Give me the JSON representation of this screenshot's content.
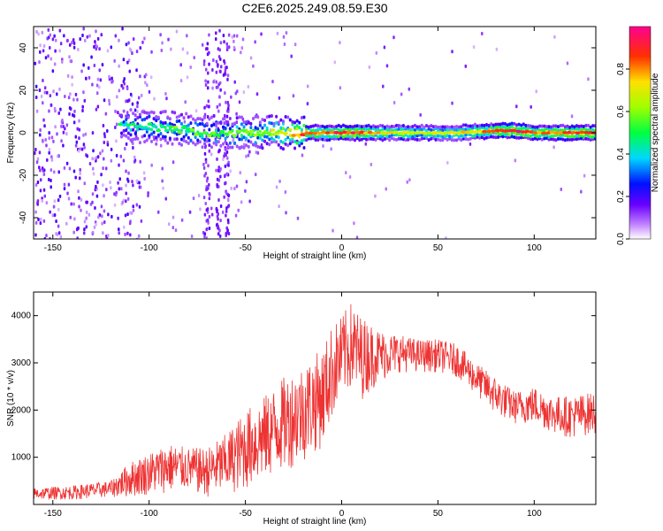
{
  "title": "C2E6.2025.249.08.59.E30",
  "chart_data": [
    {
      "type": "heatmap",
      "xlabel": "Height of straight line (km)",
      "ylabel": "Frequency (Hz)",
      "xlim": [
        -160,
        132
      ],
      "ylim": [
        -50,
        50
      ],
      "x_ticks": [
        -150,
        -100,
        -50,
        0,
        50,
        100
      ],
      "x_tick_labels": [
        "-150",
        "-100",
        "-50",
        "0",
        "50",
        "100"
      ],
      "y_ticks": [
        -40,
        -20,
        0,
        20,
        40
      ],
      "y_tick_labels": [
        "-40",
        "-20",
        "0",
        "20",
        "40"
      ],
      "colorbar": {
        "label": "Normalized spectral amplitude",
        "range": [
          0,
          1
        ],
        "ticks": [
          0.0,
          0.2,
          0.4,
          0.6,
          0.8
        ],
        "tick_labels": [
          "0.0",
          "0.2",
          "0.4",
          "0.6",
          "0.8"
        ]
      },
      "ridge": [
        {
          "x": -115,
          "f": 3,
          "amp": 0.45
        },
        {
          "x": -100,
          "f": 3,
          "amp": 0.48
        },
        {
          "x": -90,
          "f": 2,
          "amp": 0.52
        },
        {
          "x": -80,
          "f": 1,
          "amp": 0.55
        },
        {
          "x": -70,
          "f": 0,
          "amp": 0.55
        },
        {
          "x": -60,
          "f": 0,
          "amp": 0.58
        },
        {
          "x": -50,
          "f": 0,
          "amp": 0.6
        },
        {
          "x": -40,
          "f": 0,
          "amp": 0.62
        },
        {
          "x": -30,
          "f": 0,
          "amp": 0.7
        },
        {
          "x": -20,
          "f": 0,
          "amp": 0.85
        },
        {
          "x": -10,
          "f": 0,
          "amp": 0.8
        },
        {
          "x": 0,
          "f": 0,
          "amp": 0.9
        },
        {
          "x": 10,
          "f": 0,
          "amp": 0.85
        },
        {
          "x": 20,
          "f": 0,
          "amp": 0.72
        },
        {
          "x": 30,
          "f": 0,
          "amp": 0.7
        },
        {
          "x": 40,
          "f": 0,
          "amp": 0.65
        },
        {
          "x": 50,
          "f": 0,
          "amp": 0.68
        },
        {
          "x": 60,
          "f": 0,
          "amp": 0.7
        },
        {
          "x": 70,
          "f": 0.5,
          "amp": 0.75
        },
        {
          "x": 80,
          "f": 1,
          "amp": 0.85
        },
        {
          "x": 90,
          "f": 1,
          "amp": 0.95
        },
        {
          "x": 100,
          "f": 0,
          "amp": 0.8
        },
        {
          "x": 110,
          "f": 0,
          "amp": 0.85
        },
        {
          "x": 120,
          "f": 0,
          "amp": 0.85
        },
        {
          "x": 130,
          "f": 0,
          "amp": 0.85
        }
      ]
    },
    {
      "type": "line",
      "xlabel": "Height of straight line (km)",
      "ylabel": "SNR (10 * v/v)",
      "xlim": [
        -160,
        132
      ],
      "ylim": [
        0,
        4500
      ],
      "x_ticks": [
        -150,
        -100,
        -50,
        0,
        50,
        100
      ],
      "x_tick_labels": [
        "-150",
        "-100",
        "-50",
        "0",
        "50",
        "100"
      ],
      "y_ticks": [
        1000,
        2000,
        3000,
        4000
      ],
      "y_tick_labels": [
        "1000",
        "2000",
        "3000",
        "4000"
      ],
      "color": "#ee3333",
      "envelope": {
        "x": [
          -160,
          -140,
          -120,
          -110,
          -100,
          -90,
          -80,
          -70,
          -60,
          -50,
          -40,
          -30,
          -20,
          -10,
          -5,
          0,
          5,
          10,
          20,
          30,
          40,
          50,
          60,
          70,
          80,
          90,
          100,
          110,
          120,
          132
        ],
        "low": [
          100,
          100,
          150,
          150,
          200,
          250,
          300,
          150,
          200,
          300,
          500,
          700,
          900,
          1200,
          1800,
          2200,
          2400,
          2200,
          2600,
          2800,
          2800,
          2800,
          2700,
          2300,
          1900,
          1700,
          1700,
          1500,
          1400,
          1500
        ],
        "high": [
          350,
          400,
          500,
          900,
          1100,
          1300,
          1200,
          1200,
          1500,
          2000,
          2300,
          2700,
          3000,
          3300,
          3800,
          4000,
          4300,
          4000,
          3700,
          3600,
          3500,
          3500,
          3400,
          3000,
          2700,
          2400,
          2500,
          2300,
          2300,
          2400
        ]
      }
    }
  ]
}
